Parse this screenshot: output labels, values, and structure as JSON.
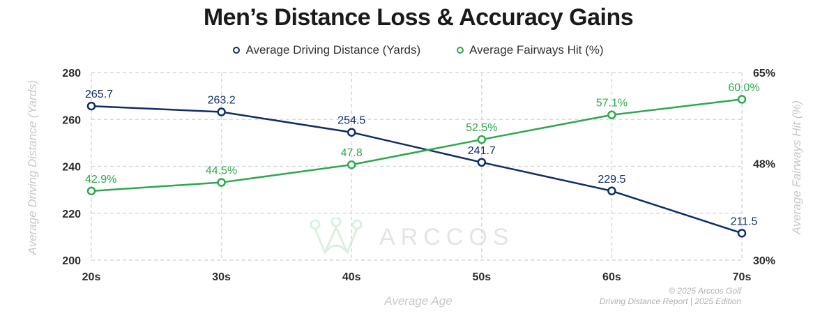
{
  "chart_data": {
    "type": "line",
    "title": "Men’s Distance Loss & Accuracy Gains",
    "xlabel": "Average Age",
    "ylabel": "Average Driving Distance (Yards)",
    "y2label": "Average Fairways Hit (%)",
    "categories": [
      "20s",
      "30s",
      "40s",
      "50s",
      "60s",
      "70s"
    ],
    "ylim": [
      200,
      280
    ],
    "yticks": [
      "200",
      "220",
      "240",
      "260",
      "280"
    ],
    "y2lim": [
      30,
      65
    ],
    "y2ticks": [
      "30%",
      "48%",
      "65%"
    ],
    "grid": true,
    "legend_position": "top-center",
    "series": [
      {
        "name": "Average Driving Distance (Yards)",
        "axis": "left",
        "color": "#0f2d66",
        "values": [
          265.7,
          263.2,
          254.5,
          241.7,
          229.5,
          211.5
        ],
        "labels": [
          "265.7",
          "263.2",
          "254.5",
          "241.7",
          "229.5",
          "211.5"
        ]
      },
      {
        "name": "Average Fairways Hit (%)",
        "axis": "right",
        "color": "#2ea84a",
        "values": [
          42.9,
          44.5,
          47.8,
          52.5,
          57.1,
          60.0
        ],
        "labels": [
          "42.9%",
          "44.5%",
          "47.8",
          "52.5%",
          "57.1%",
          "60.0%"
        ]
      }
    ]
  },
  "watermark": "ARCCOS",
  "credit": {
    "line1": "© 2025 Arccos Golf",
    "line2": "Driving Distance Report | 2025 Edition"
  }
}
